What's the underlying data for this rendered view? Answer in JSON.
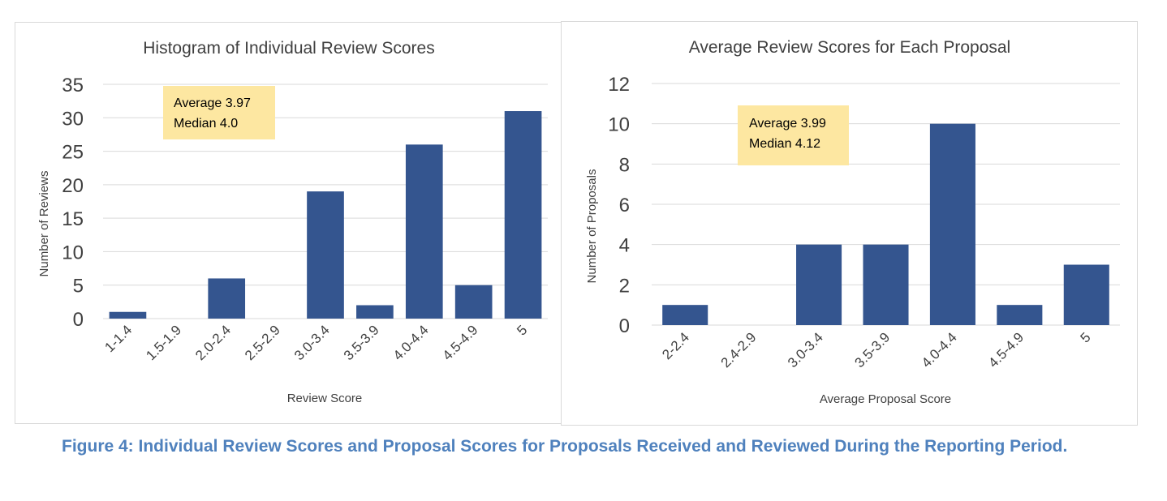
{
  "caption": "Figure 4: Individual Review Scores and Proposal Scores for Proposals Received and Reviewed During the Reporting Period.",
  "colors": {
    "bar": "#34558f",
    "annotation_bg": "#fde7a1",
    "caption": "#4f81bd"
  },
  "chart_data": [
    {
      "type": "bar",
      "title": "Histogram of Individual Review Scores",
      "xlabel": "Review Score",
      "ylabel": "Number of Reviews",
      "categories": [
        "1-1.4",
        "1.5-1.9",
        "2.0-2.4",
        "2.5-2.9",
        "3.0-3.4",
        "3.5-3.9",
        "4.0-4.4",
        "4.5-4.9",
        "5"
      ],
      "values": [
        1,
        0,
        6,
        0,
        19,
        2,
        26,
        5,
        31
      ],
      "ylim": [
        0,
        35
      ],
      "yticks": [
        0,
        5,
        10,
        15,
        20,
        25,
        30,
        35
      ],
      "grid": true,
      "annotation": [
        "Average 3.97",
        "Median 4.0"
      ]
    },
    {
      "type": "bar",
      "title": "Average Review Scores for Each Proposal",
      "xlabel": "Average Proposal Score",
      "ylabel": "Number of Proposals",
      "categories": [
        "2-2.4",
        "2.4-2.9",
        "3.0-3.4",
        "3.5-3.9",
        "4.0-4.4",
        "4.5-4.9",
        "5"
      ],
      "values": [
        1,
        0,
        4,
        4,
        10,
        1,
        3
      ],
      "ylim": [
        0,
        12
      ],
      "yticks": [
        0,
        2,
        4,
        6,
        8,
        10,
        12
      ],
      "grid": true,
      "annotation": [
        "Average 3.99",
        "Median 4.12"
      ]
    }
  ]
}
